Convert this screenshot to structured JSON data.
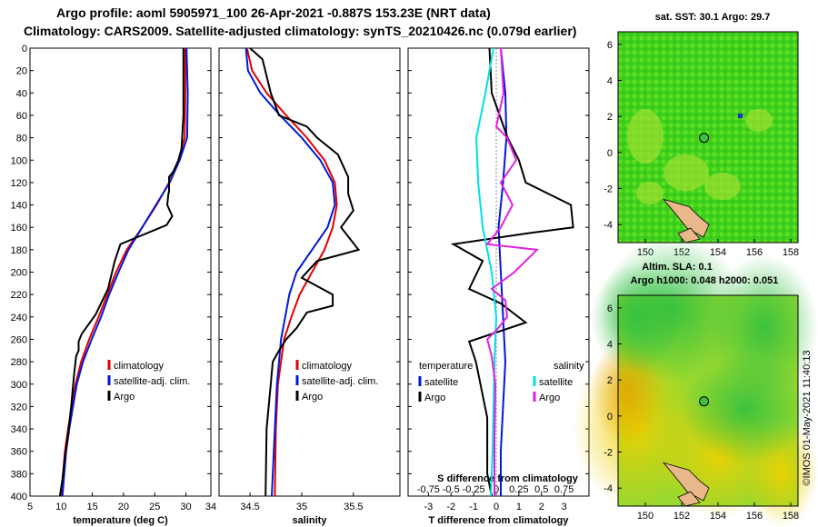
{
  "title_line1": "Argo profile: aoml 5905971_100 26-Apr-2021 -0.887S 153.23E (NRT data)",
  "title_line2": "Climatology: CARS2009. Satellite-adjusted climatology: synTS_20210426.nc (0.079d earlier)",
  "depth_axis": {
    "ticks": [
      0,
      20,
      40,
      60,
      80,
      100,
      120,
      140,
      160,
      180,
      200,
      220,
      240,
      260,
      280,
      300,
      320,
      340,
      360,
      380,
      400
    ],
    "range": [
      0,
      400
    ]
  },
  "panels": [
    {
      "id": "temperature",
      "xlabel": "temperature (deg C)",
      "xlim": [
        5,
        34
      ],
      "xticks": [
        5,
        10,
        15,
        20,
        25,
        30,
        34
      ],
      "legend": [
        "climatology",
        "satellite-adj. clim.",
        "Argo"
      ]
    },
    {
      "id": "salinity",
      "xlabel": "salinity",
      "xlim": [
        34.2,
        35.95
      ],
      "xticks": [
        34.5,
        35,
        35.5
      ],
      "legend": [
        "climatology",
        "satellite-adj. clim.",
        "Argo"
      ]
    },
    {
      "id": "difference",
      "xlabel": "T difference from climatology",
      "xlim": [
        -3.9,
        4.1
      ],
      "xticks": [
        -3,
        -2,
        -1,
        0,
        1,
        2,
        3
      ],
      "top_label": "S difference from climatology",
      "top_ticks": [
        "-0.75",
        "-0.5",
        "-0.25",
        "0",
        "0.25",
        "0.5",
        "0.75"
      ],
      "legend_left_title": "temperature",
      "legend_right_title": "salinity",
      "legend_left": [
        "satellite",
        "Argo"
      ],
      "legend_right": [
        "satellite",
        "Argo"
      ]
    }
  ],
  "colors": {
    "climatology": "#e00000",
    "satellite": "#0018d8",
    "argo": "#000000",
    "sat_s": "#00e0e8",
    "argo_s": "#e020e0"
  },
  "chart_data": [
    {
      "type": "line",
      "title": "temperature profile",
      "xlabel": "temperature (deg C)",
      "ylabel": "depth",
      "series": [
        {
          "name": "climatology",
          "points": [
            [
              29.9,
              0
            ],
            [
              29.9,
              40
            ],
            [
              29.8,
              80
            ],
            [
              28.8,
              100
            ],
            [
              27.3,
              120
            ],
            [
              25.3,
              140
            ],
            [
              23,
              160
            ],
            [
              20.5,
              180
            ],
            [
              18.8,
              200
            ],
            [
              17.4,
              220
            ],
            [
              16,
              240
            ],
            [
              14.5,
              260
            ],
            [
              13.2,
              280
            ],
            [
              12.3,
              300
            ],
            [
              11.7,
              320
            ],
            [
              11.1,
              340
            ],
            [
              10.6,
              360
            ],
            [
              10.3,
              380
            ],
            [
              10,
              400
            ]
          ]
        },
        {
          "name": "satellite-adj. clim.",
          "points": [
            [
              30.1,
              0
            ],
            [
              30.3,
              40
            ],
            [
              30.2,
              80
            ],
            [
              29,
              100
            ],
            [
              27.4,
              120
            ],
            [
              25.2,
              140
            ],
            [
              23,
              160
            ],
            [
              20.8,
              180
            ],
            [
              19.2,
              200
            ],
            [
              17.7,
              220
            ],
            [
              16.4,
              240
            ],
            [
              14.9,
              260
            ],
            [
              13.5,
              280
            ],
            [
              12.5,
              300
            ],
            [
              11.9,
              320
            ],
            [
              11.3,
              340
            ],
            [
              10.8,
              360
            ],
            [
              10.5,
              380
            ],
            [
              10.2,
              400
            ]
          ]
        },
        {
          "name": "Argo",
          "points": [
            [
              29.6,
              0
            ],
            [
              29.6,
              60
            ],
            [
              29.3,
              90
            ],
            [
              28.8,
              100
            ],
            [
              28,
              110
            ],
            [
              27.3,
              115
            ],
            [
              27.3,
              128
            ],
            [
              27.2,
              130
            ],
            [
              27,
              140
            ],
            [
              27.8,
              150
            ],
            [
              26.9,
              158
            ],
            [
              19.5,
              175
            ],
            [
              18.6,
              190
            ],
            [
              17.5,
              215
            ],
            [
              15.5,
              238
            ],
            [
              13.3,
              255
            ],
            [
              12.8,
              262
            ],
            [
              12.8,
              270
            ],
            [
              12.4,
              275
            ],
            [
              12.1,
              290
            ],
            [
              11.6,
              320
            ],
            [
              11.1,
              345
            ],
            [
              10.6,
              365
            ],
            [
              10.2,
              385
            ],
            [
              9.8,
              400
            ]
          ]
        }
      ]
    },
    {
      "type": "line",
      "title": "salinity profile",
      "xlabel": "salinity",
      "ylabel": "depth",
      "series": [
        {
          "name": "climatology",
          "points": [
            [
              34.47,
              0
            ],
            [
              34.52,
              20
            ],
            [
              34.66,
              40
            ],
            [
              34.85,
              60
            ],
            [
              35.05,
              80
            ],
            [
              35.22,
              100
            ],
            [
              35.32,
              120
            ],
            [
              35.34,
              140
            ],
            [
              35.3,
              160
            ],
            [
              35.22,
              180
            ],
            [
              35.1,
              200
            ],
            [
              34.98,
              220
            ],
            [
              34.9,
              240
            ],
            [
              34.83,
              260
            ],
            [
              34.8,
              280
            ],
            [
              34.77,
              300
            ],
            [
              34.75,
              340
            ],
            [
              34.74,
              400
            ]
          ]
        },
        {
          "name": "satellite-adj. clim.",
          "points": [
            [
              34.46,
              0
            ],
            [
              34.48,
              20
            ],
            [
              34.6,
              40
            ],
            [
              34.79,
              60
            ],
            [
              35,
              80
            ],
            [
              35.18,
              100
            ],
            [
              35.3,
              120
            ],
            [
              35.32,
              140
            ],
            [
              35.25,
              160
            ],
            [
              35.1,
              180
            ],
            [
              34.95,
              200
            ],
            [
              34.88,
              220
            ],
            [
              34.84,
              240
            ],
            [
              34.8,
              260
            ],
            [
              34.78,
              280
            ],
            [
              34.76,
              300
            ],
            [
              34.74,
              340
            ],
            [
              34.71,
              400
            ]
          ]
        },
        {
          "name": "Argo",
          "points": [
            [
              34.5,
              0
            ],
            [
              34.62,
              10
            ],
            [
              34.7,
              40
            ],
            [
              34.78,
              60
            ],
            [
              35.05,
              70
            ],
            [
              35.15,
              80
            ],
            [
              35.35,
              95
            ],
            [
              35.45,
              115
            ],
            [
              35.45,
              130
            ],
            [
              35.5,
              145
            ],
            [
              35.38,
              160
            ],
            [
              35.55,
              180
            ],
            [
              35.15,
              190
            ],
            [
              35.0,
              205
            ],
            [
              35.3,
              220
            ],
            [
              35.3,
              230
            ],
            [
              35.05,
              236
            ],
            [
              34.95,
              250
            ],
            [
              34.85,
              260
            ],
            [
              34.78,
              270
            ],
            [
              34.72,
              280
            ],
            [
              34.7,
              300
            ],
            [
              34.66,
              340
            ],
            [
              34.65,
              400
            ]
          ]
        }
      ]
    },
    {
      "type": "line",
      "title": "difference from climatology",
      "xlabel": "T difference from climatology",
      "ylabel": "depth",
      "series": [
        {
          "name": "temperature satellite",
          "points": [
            [
              0.2,
              0
            ],
            [
              0.4,
              40
            ],
            [
              0.45,
              80
            ],
            [
              0.3,
              120
            ],
            [
              0.1,
              160
            ],
            [
              0.2,
              200
            ],
            [
              0.3,
              240
            ],
            [
              0.4,
              280
            ],
            [
              0.3,
              320
            ],
            [
              0.2,
              360
            ],
            [
              0.2,
              400
            ]
          ]
        },
        {
          "name": "temperature Argo",
          "points": [
            [
              -0.3,
              0
            ],
            [
              -0.2,
              40
            ],
            [
              0.5,
              80
            ],
            [
              1,
              100
            ],
            [
              1.3,
              120
            ],
            [
              3.3,
              140
            ],
            [
              3.4,
              160
            ],
            [
              1.5,
              165
            ],
            [
              -1.9,
              175
            ],
            [
              -0.6,
              190
            ],
            [
              -1.2,
              215
            ],
            [
              0.2,
              228
            ],
            [
              1.3,
              245
            ],
            [
              -1.2,
              262
            ],
            [
              -0.9,
              280
            ],
            [
              -0.4,
              330
            ],
            [
              -0.4,
              380
            ],
            [
              -0.2,
              400
            ]
          ]
        },
        {
          "name": "salinity satellite",
          "points": [
            [
              -0.03,
              0
            ],
            [
              -0.12,
              40
            ],
            [
              -0.22,
              80
            ],
            [
              -0.2,
              120
            ],
            [
              -0.15,
              160
            ],
            [
              -0.05,
              200
            ],
            [
              0,
              240
            ],
            [
              -0.02,
              280
            ],
            [
              -0.03,
              320
            ],
            [
              -0.04,
              360
            ],
            [
              -0.06,
              400
            ]
          ]
        },
        {
          "name": "salinity Argo",
          "points": [
            [
              0.05,
              0
            ],
            [
              0.08,
              40
            ],
            [
              0,
              70
            ],
            [
              0.12,
              80
            ],
            [
              0.22,
              100
            ],
            [
              0.05,
              120
            ],
            [
              0.18,
              140
            ],
            [
              0.05,
              160
            ],
            [
              -0.1,
              175
            ],
            [
              0.45,
              180
            ],
            [
              0.2,
              200
            ],
            [
              -0.05,
              215
            ],
            [
              0.1,
              225
            ],
            [
              0.12,
              240
            ],
            [
              0,
              252
            ],
            [
              -0.1,
              260
            ],
            [
              -0.05,
              275
            ],
            [
              -0.01,
              300
            ],
            [
              -0.02,
              350
            ],
            [
              -0.02,
              400
            ]
          ]
        }
      ]
    }
  ],
  "maps": [
    {
      "id": "sst",
      "title": "sat. SST: 30.1 Argo: 29.7",
      "yticks": [
        6,
        4,
        2,
        0,
        -2,
        -4
      ],
      "xticks": [
        150,
        152,
        154,
        156,
        158
      ]
    },
    {
      "id": "sla",
      "title_line1": "Altim. SLA: 0.1",
      "title_line2": "Argo h1000: 0.048 h2000: 0.051",
      "yticks": [
        6,
        4,
        2,
        0,
        -2,
        -4
      ],
      "xticks": [
        150,
        152,
        154,
        156,
        158
      ]
    }
  ],
  "credit": "©IMOS 01-May-2021 11:40:13"
}
